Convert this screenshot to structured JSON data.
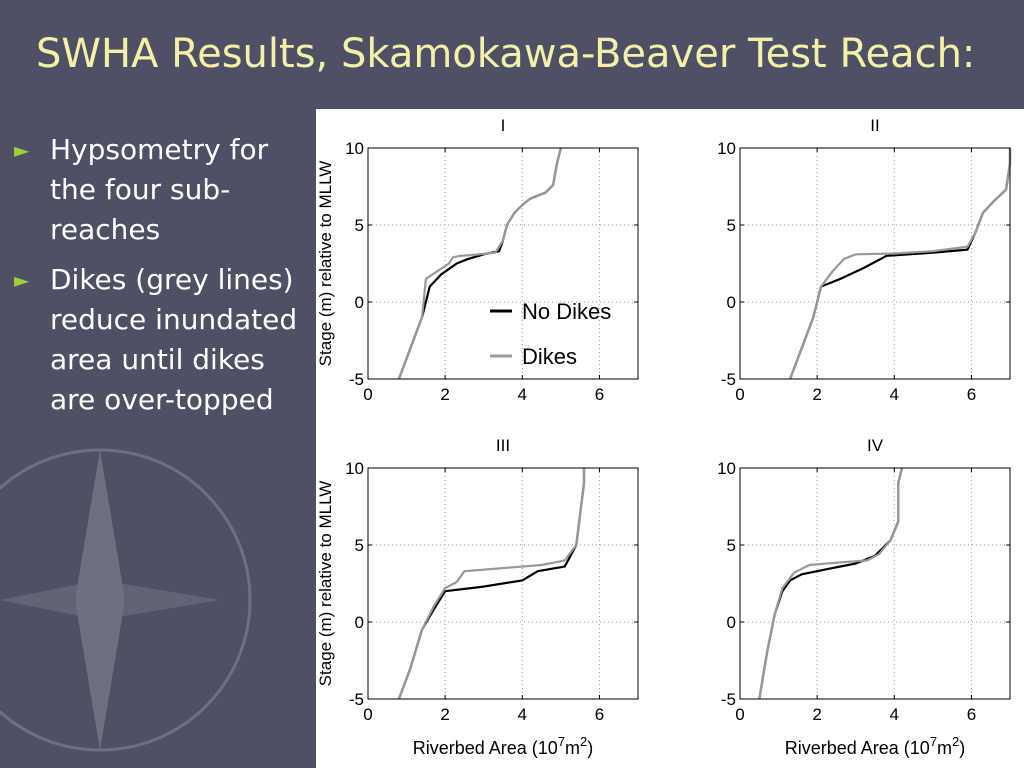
{
  "slide": {
    "title": "SWHA Results, Skamokawa-Beaver Test Reach:",
    "bullets": [
      "Hypsometry for the four sub-reaches",
      "Dikes (grey lines) reduce inundated area until dikes are over-topped"
    ]
  },
  "colors": {
    "background": "#4e5166",
    "title": "#f4f0a8",
    "bullet_marker": "#9ecf3a",
    "no_dikes_line": "#000000",
    "dikes_line": "#999999"
  },
  "chart_data": [
    {
      "type": "line",
      "title": "I",
      "xlabel": "Riverbed Area (10^7 m^2)",
      "ylabel": "Stage (m) relative to MLLW",
      "xlim": [
        0,
        7
      ],
      "ylim": [
        -5,
        10
      ],
      "xticks": [
        "0",
        "2",
        "4",
        "6"
      ],
      "yticks": [
        "-5",
        "0",
        "5",
        "10"
      ],
      "grid": true,
      "legend": [
        "No Dikes",
        "Dikes"
      ],
      "series": [
        {
          "name": "No Dikes",
          "x": [
            0.8,
            1.1,
            1.4,
            1.6,
            1.9,
            2.3,
            2.6,
            3.0,
            3.4,
            3.5,
            3.6,
            3.8,
            4.0,
            4.2,
            4.4,
            4.6,
            4.8,
            4.9,
            5.0
          ],
          "y": [
            -5,
            -3,
            -1,
            1,
            1.8,
            2.5,
            2.8,
            3.1,
            3.3,
            4.0,
            5.0,
            5.8,
            6.3,
            6.7,
            6.9,
            7.1,
            7.6,
            9,
            10
          ]
        },
        {
          "name": "Dikes",
          "x": [
            0.8,
            1.1,
            1.4,
            1.5,
            1.8,
            2.1,
            2.2,
            2.4,
            2.7,
            3.3,
            3.5,
            3.6,
            3.8,
            4.0,
            4.2,
            4.4,
            4.6,
            4.8,
            4.9,
            5.0
          ],
          "y": [
            -5,
            -3,
            -1,
            1.5,
            2.0,
            2.5,
            2.9,
            3.0,
            3.05,
            3.2,
            4.0,
            5.0,
            5.8,
            6.3,
            6.7,
            6.9,
            7.1,
            7.6,
            9,
            10
          ]
        }
      ]
    },
    {
      "type": "line",
      "title": "II",
      "xlabel": "Riverbed Area (10^7 m^2)",
      "ylabel": "Stage (m) relative to MLLW",
      "xlim": [
        0,
        7
      ],
      "ylim": [
        -5,
        10
      ],
      "xticks": [
        "0",
        "2",
        "4",
        "6"
      ],
      "yticks": [
        "-5",
        "0",
        "5",
        "10"
      ],
      "grid": true,
      "series": [
        {
          "name": "No Dikes",
          "x": [
            1.3,
            1.6,
            1.9,
            2.1,
            2.6,
            3.2,
            3.8,
            5.0,
            5.9,
            6.1,
            6.3,
            6.6,
            6.9,
            7.0,
            7.0
          ],
          "y": [
            -5,
            -3,
            -1,
            1,
            1.5,
            2.2,
            3.0,
            3.2,
            3.4,
            4.5,
            5.8,
            6.6,
            7.3,
            9,
            10
          ]
        },
        {
          "name": "Dikes",
          "x": [
            1.3,
            1.6,
            1.9,
            2.1,
            2.4,
            2.7,
            3.0,
            4.0,
            5.0,
            5.9,
            6.1,
            6.3,
            6.6,
            6.9,
            7.0,
            7.0
          ],
          "y": [
            -5,
            -3,
            -1,
            1,
            2.0,
            2.8,
            3.1,
            3.15,
            3.3,
            3.6,
            4.5,
            5.8,
            6.6,
            7.3,
            9,
            10
          ]
        }
      ]
    },
    {
      "type": "line",
      "title": "III",
      "xlabel": "Riverbed Area (10^7 m^2)",
      "ylabel": "Stage (m) relative to MLLW",
      "xlim": [
        0,
        7
      ],
      "ylim": [
        -5,
        10
      ],
      "xticks": [
        "0",
        "2",
        "4",
        "6"
      ],
      "yticks": [
        "-5",
        "0",
        "5",
        "10"
      ],
      "grid": true,
      "series": [
        {
          "name": "No Dikes",
          "x": [
            0.8,
            1.1,
            1.4,
            1.7,
            2.0,
            3.0,
            4.0,
            4.4,
            5.1,
            5.4,
            5.5,
            5.6,
            5.6
          ],
          "y": [
            -5,
            -3,
            -0.5,
            0.8,
            2.0,
            2.3,
            2.7,
            3.3,
            3.6,
            5.0,
            7.0,
            9,
            10
          ]
        },
        {
          "name": "Dikes",
          "x": [
            0.8,
            1.1,
            1.4,
            1.7,
            2.0,
            2.3,
            2.5,
            3.5,
            4.5,
            5.1,
            5.4,
            5.5,
            5.6,
            5.6
          ],
          "y": [
            -5,
            -3,
            -0.5,
            1.0,
            2.2,
            2.6,
            3.3,
            3.5,
            3.7,
            4.0,
            5.0,
            7.0,
            9,
            10
          ]
        }
      ]
    },
    {
      "type": "line",
      "title": "IV",
      "xlabel": "Riverbed Area (10^7 m^2)",
      "ylabel": "Stage (m) relative to MLLW",
      "xlim": [
        0,
        7
      ],
      "ylim": [
        -5,
        10
      ],
      "xticks": [
        "0",
        "2",
        "4",
        "6"
      ],
      "yticks": [
        "-5",
        "0",
        "5",
        "10"
      ],
      "grid": true,
      "series": [
        {
          "name": "No Dikes",
          "x": [
            0.5,
            0.7,
            0.9,
            1.1,
            1.3,
            1.6,
            2.2,
            3.0,
            3.5,
            3.9,
            4.1,
            4.1,
            4.2
          ],
          "y": [
            -5,
            -2,
            0.5,
            2,
            2.7,
            3.1,
            3.4,
            3.8,
            4.3,
            5.3,
            6.5,
            9,
            10
          ]
        },
        {
          "name": "Dikes",
          "x": [
            0.5,
            0.7,
            0.9,
            1.1,
            1.4,
            1.8,
            2.5,
            3.3,
            3.6,
            3.9,
            4.1,
            4.1,
            4.2
          ],
          "y": [
            -5,
            -2,
            0.5,
            2.2,
            3.2,
            3.7,
            3.85,
            4.0,
            4.4,
            5.3,
            6.5,
            9,
            10
          ]
        }
      ]
    }
  ],
  "axis_label_parts": {
    "xlabel_text": "Riverbed Area (10",
    "xlabel_exp1": "7",
    "xlabel_mid": "m",
    "xlabel_exp2": "2",
    "xlabel_end": ")",
    "ylabel_text": "Stage (m) relative to MLLW"
  },
  "legend": {
    "no_dikes": "No Dikes",
    "dikes": "Dikes"
  }
}
